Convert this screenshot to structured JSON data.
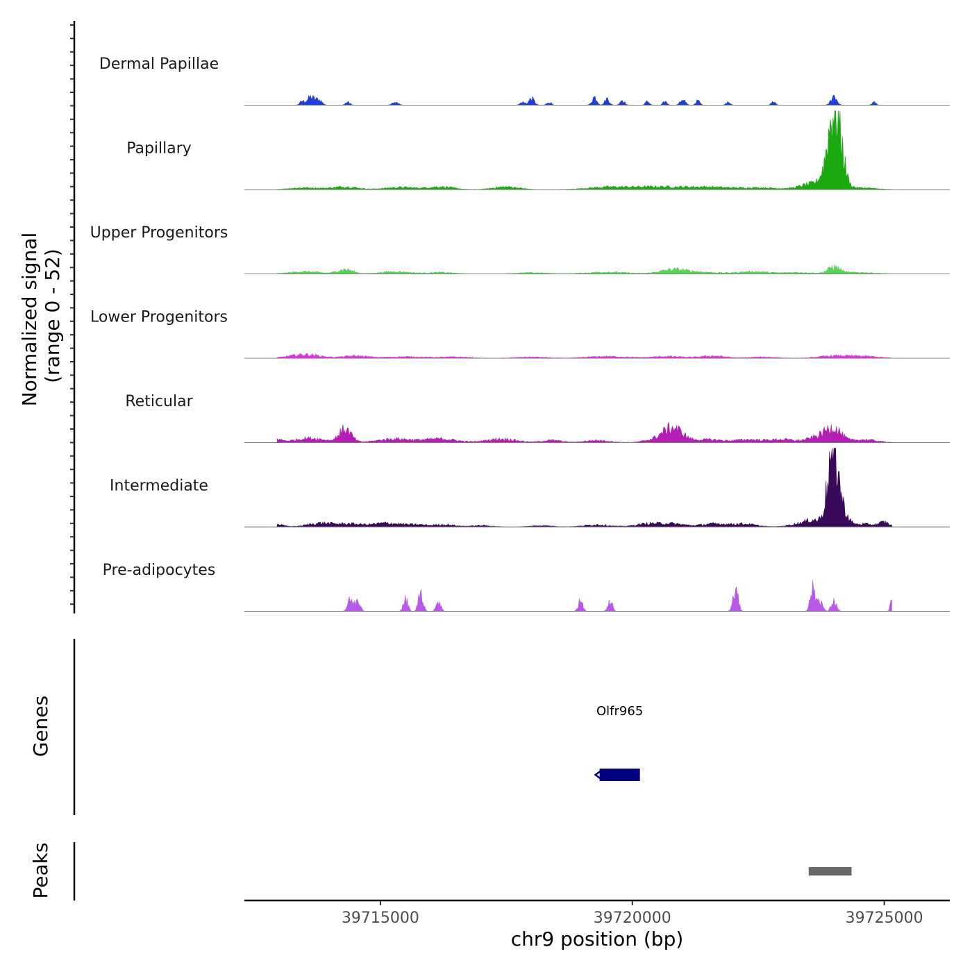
{
  "chart_data": {
    "type": "area",
    "chromosome": "chr9",
    "x_range": [
      39712300,
      39726300
    ],
    "xlabel": "chr9 position (bp)",
    "x_ticks": [
      39715000,
      39720000,
      39725000
    ],
    "x_tick_labels": [
      "39715000",
      "39720000",
      "39725000"
    ],
    "signal_ylabel": "Normalized signal",
    "signal_ylabel_range": "(range 0 - 52)",
    "y_range": [
      0,
      52
    ],
    "tracks": [
      {
        "name": "Dermal Papillae",
        "color": "#1f3fdc",
        "peaks": [
          [
            39713450,
            2.5,
            50
          ],
          [
            39713620,
            5.5,
            70
          ],
          [
            39713780,
            3.5,
            60
          ],
          [
            39714350,
            2,
            45
          ],
          [
            39715300,
            2,
            60
          ],
          [
            39717820,
            2,
            45
          ],
          [
            39718000,
            4.5,
            55
          ],
          [
            39718350,
            2,
            45
          ],
          [
            39719250,
            5.5,
            50
          ],
          [
            39719500,
            4.5,
            45
          ],
          [
            39719800,
            3.5,
            45
          ],
          [
            39720300,
            2.5,
            40
          ],
          [
            39720650,
            2.5,
            40
          ],
          [
            39721000,
            4,
            50
          ],
          [
            39721300,
            3,
            40
          ],
          [
            39721900,
            2,
            40
          ],
          [
            39722800,
            2.5,
            40
          ],
          [
            39724000,
            6.5,
            55
          ],
          [
            39724800,
            2,
            40
          ]
        ]
      },
      {
        "name": "Papillary",
        "color": "#1aaa10",
        "peaks": [
          [
            39713500,
            1.2,
            300
          ],
          [
            39714300,
            1.8,
            250
          ],
          [
            39715400,
            1.5,
            300
          ],
          [
            39716200,
            1.8,
            250
          ],
          [
            39717500,
            1.8,
            250
          ],
          [
            39719500,
            1.5,
            400
          ],
          [
            39720500,
            1.8,
            500
          ],
          [
            39721500,
            1.5,
            400
          ],
          [
            39722500,
            1.2,
            400
          ],
          [
            39723600,
            4,
            250
          ],
          [
            39723900,
            12,
            120
          ],
          [
            39724000,
            31,
            110
          ],
          [
            39724100,
            22,
            110
          ],
          [
            39724500,
            1.2,
            300
          ]
        ]
      },
      {
        "name": "Upper Progenitors",
        "color": "#5ad25a",
        "peaks": [
          [
            39713500,
            1.5,
            300
          ],
          [
            39714300,
            3,
            150
          ],
          [
            39715300,
            1.5,
            300
          ],
          [
            39716200,
            1,
            250
          ],
          [
            39718000,
            0.8,
            300
          ],
          [
            39719500,
            1.2,
            400
          ],
          [
            39720800,
            2.5,
            250
          ],
          [
            39721300,
            1.2,
            400
          ],
          [
            39722400,
            1.5,
            300
          ],
          [
            39723300,
            1,
            300
          ],
          [
            39724000,
            4.5,
            120
          ],
          [
            39724500,
            1,
            300
          ]
        ]
      },
      {
        "name": "Lower Progenitors",
        "color": "#e62ee6",
        "peaks": [
          [
            39713500,
            2.5,
            300
          ],
          [
            39714500,
            1.5,
            250
          ],
          [
            39715500,
            1,
            400
          ],
          [
            39716500,
            0.8,
            300
          ],
          [
            39718000,
            0.8,
            300
          ],
          [
            39719500,
            1.2,
            400
          ],
          [
            39720700,
            1.2,
            300
          ],
          [
            39721600,
            1.5,
            250
          ],
          [
            39722600,
            0.8,
            300
          ],
          [
            39724000,
            1.5,
            300
          ],
          [
            39724600,
            1.2,
            300
          ]
        ]
      },
      {
        "name": "Reticular",
        "color": "#b41eb4",
        "peaks": [
          [
            39712900,
            2.5,
            120
          ],
          [
            39713600,
            3,
            300
          ],
          [
            39714300,
            9,
            120
          ],
          [
            39715300,
            2.5,
            350
          ],
          [
            39716200,
            2.5,
            300
          ],
          [
            39717400,
            2.5,
            300
          ],
          [
            39718400,
            1.5,
            200
          ],
          [
            39719300,
            1.5,
            250
          ],
          [
            39720400,
            1.5,
            200
          ],
          [
            39720800,
            10,
            200
          ],
          [
            39721500,
            2,
            250
          ],
          [
            39722300,
            2,
            300
          ],
          [
            39723000,
            2,
            250
          ],
          [
            39723700,
            4,
            200
          ],
          [
            39724000,
            9,
            150
          ],
          [
            39724600,
            2,
            250
          ]
        ]
      },
      {
        "name": "Intermediate",
        "color": "#3a0a5a",
        "peaks": [
          [
            39712900,
            2,
            150
          ],
          [
            39713800,
            2.5,
            250
          ],
          [
            39714400,
            2,
            250
          ],
          [
            39715100,
            2.5,
            250
          ],
          [
            39715700,
            1.5,
            250
          ],
          [
            39716300,
            1.5,
            200
          ],
          [
            39717000,
            1,
            200
          ],
          [
            39718200,
            1,
            200
          ],
          [
            39719300,
            1.5,
            250
          ],
          [
            39720300,
            2,
            250
          ],
          [
            39720800,
            2,
            250
          ],
          [
            39721600,
            2,
            250
          ],
          [
            39722200,
            2,
            250
          ],
          [
            39723300,
            2,
            200
          ],
          [
            39723600,
            4,
            150
          ],
          [
            39723900,
            10,
            100
          ],
          [
            39724000,
            45,
            100
          ],
          [
            39724200,
            8,
            100
          ],
          [
            39724600,
            2,
            200
          ],
          [
            39725000,
            3,
            100
          ]
        ]
      },
      {
        "name": "Pre-adipocytes",
        "color": "#b85ae8",
        "peaks": [
          [
            39714400,
            8,
            50
          ],
          [
            39714550,
            8,
            50
          ],
          [
            39715500,
            8,
            45
          ],
          [
            39715800,
            14,
            45
          ],
          [
            39716150,
            7,
            45
          ],
          [
            39718970,
            7,
            45
          ],
          [
            39719560,
            7,
            45
          ],
          [
            39722050,
            14,
            50
          ],
          [
            39723580,
            15,
            50
          ],
          [
            39723720,
            8,
            50
          ],
          [
            39724000,
            7,
            50
          ],
          [
            39725150,
            7,
            30
          ]
        ]
      }
    ],
    "genes_label": "Genes",
    "genes": [
      {
        "name": "Olfr965",
        "start": 39719350,
        "end": 39720150,
        "strand": "-",
        "color": "#000080"
      }
    ],
    "peaks_label": "Peaks",
    "peak_regions": [
      {
        "start": 39723500,
        "end": 39724350,
        "color": "#666666"
      }
    ]
  }
}
